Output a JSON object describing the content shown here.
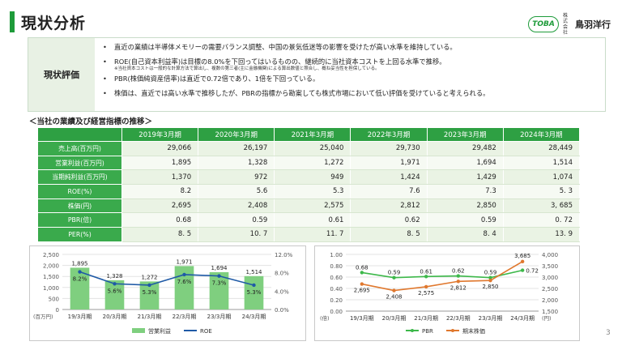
{
  "header": {
    "title": "現状分析",
    "logo_badge": "TOBA",
    "logo_small": "株式会社",
    "logo_name": "鳥羽洋行"
  },
  "evaluation": {
    "label": "現状評価",
    "bullet": "•",
    "items": [
      {
        "text": "直近の業績は半導体メモリーの需要バランス調整、中国の景気低迷等の影響を受けたが高い水準を維持している。",
        "note": ""
      },
      {
        "text": "ROE(自己資本利益率)は目標の8.0%を下回ってはいるものの、継続的に当社資本コストを上回る水準で推移。",
        "note": "※当社資本コストは一般的な計算方法で算出し、複数の第三者(主に金融機関)による算出数値と照合し、概ね妥当性を担保している。"
      },
      {
        "text": "PBR(株価純資産倍率)は直近で0.72倍であり、1倍を下回っている。",
        "note": ""
      },
      {
        "text": "株価は、直近では高い水準で推移したが、PBRの指標から勘案しても株式市場において低い評価を受けていると考えられる。",
        "note": ""
      }
    ]
  },
  "table": {
    "section_title": "＜当社の業績及び経営指標の推移＞",
    "columns": [
      "2019年3月期",
      "2020年3月期",
      "2021年3月期",
      "2022年3月期",
      "2023年3月期",
      "2024年3月期"
    ],
    "rows": [
      {
        "label": "売上高(百万円)",
        "values": [
          "29,066",
          "26,197",
          "25,040",
          "29,730",
          "29,482",
          "28,449"
        ]
      },
      {
        "label": "営業利益(百万円)",
        "values": [
          "1,895",
          "1,328",
          "1,272",
          "1,971",
          "1,694",
          "1,514"
        ]
      },
      {
        "label": "当期純利益(百万円)",
        "values": [
          "1,370",
          "972",
          "949",
          "1,424",
          "1,429",
          "1,074"
        ]
      },
      {
        "label": "ROE(%)",
        "values": [
          "8.2",
          "5.6",
          "5.3",
          "7.6",
          "7.3",
          "5. 3"
        ]
      },
      {
        "label": "株価(円)",
        "values": [
          "2,695",
          "2,408",
          "2,575",
          "2,812",
          "2,850",
          "3, 685"
        ]
      },
      {
        "label": "PBR(倍)",
        "values": [
          "0.68",
          "0.59",
          "0.61",
          "0.62",
          "0.59",
          "0. 72"
        ]
      },
      {
        "label": "PER(%)",
        "values": [
          "8. 5",
          "10. 7",
          "11. 7",
          "8. 5",
          "8. 4",
          "13. 9"
        ]
      }
    ]
  },
  "chart_data": [
    {
      "type": "bar",
      "categories": [
        "19/3月期",
        "20/3月期",
        "21/3月期",
        "22/3月期",
        "23/3月期",
        "24/3月期"
      ],
      "series": [
        {
          "name": "営業利益",
          "kind": "bar",
          "axis": "left",
          "values": [
            1895,
            1328,
            1272,
            1971,
            1694,
            1514
          ],
          "labels": [
            "1,895",
            "1,328",
            "1,272",
            "1,971",
            "1,694",
            "1,514"
          ],
          "color": "#7fcf7f"
        },
        {
          "name": "ROE",
          "kind": "line",
          "axis": "right",
          "values": [
            8.2,
            5.6,
            5.3,
            7.6,
            7.3,
            5.3
          ],
          "labels": [
            "8.2%",
            "5.6%",
            "5.3%",
            "7.6%",
            "7.3%",
            "5.3%"
          ],
          "color": "#1f5aa6"
        }
      ],
      "ylim": [
        0,
        2500
      ],
      "y_ticks": [
        "0",
        "500",
        "1,000",
        "1,500",
        "2,000",
        "2,500"
      ],
      "y2lim": [
        0,
        12
      ],
      "y2_ticks": [
        "0.0%",
        "4.0%",
        "8.0%",
        "12.0%"
      ],
      "ylabel": "(百万円)",
      "grid": true,
      "legend": "bottom"
    },
    {
      "type": "line",
      "categories": [
        "19/3月期",
        "20/3月期",
        "21/3月期",
        "22/3月期",
        "23/3月期",
        "24/3月期"
      ],
      "series": [
        {
          "name": "PBR",
          "axis": "left",
          "values": [
            0.68,
            0.59,
            0.61,
            0.62,
            0.59,
            0.72
          ],
          "labels": [
            "0.68",
            "0.59",
            "0.61",
            "0.62",
            "0.59",
            "0.72"
          ],
          "color": "#3db84a"
        },
        {
          "name": "期末株価",
          "axis": "right",
          "values": [
            2695,
            2408,
            2575,
            2812,
            2850,
            3685
          ],
          "labels": [
            "2,695",
            "2,408",
            "2,575",
            "2,812",
            "2,850",
            "3,685"
          ],
          "color": "#e0782e"
        }
      ],
      "ylim": [
        0,
        1.0
      ],
      "y_ticks": [
        "0.00",
        "0.20",
        "0.40",
        "0.60",
        "0.80",
        "1.00"
      ],
      "y2lim": [
        1500,
        4000
      ],
      "y2_ticks": [
        "1,500",
        "2,000",
        "2,500",
        "3,000",
        "3,500",
        "4,000"
      ],
      "ylabel": "(倍)",
      "y2label": "(円)",
      "grid": true,
      "legend": "bottom"
    }
  ],
  "page_number": "3"
}
